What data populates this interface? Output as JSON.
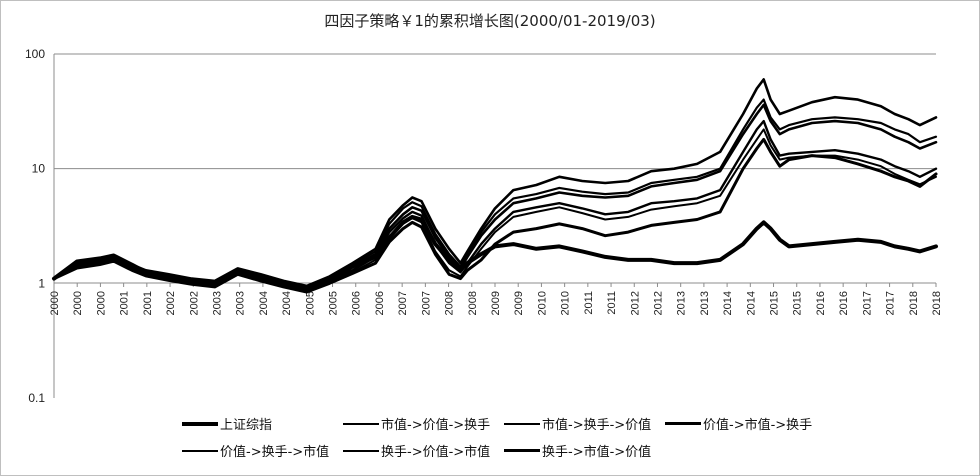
{
  "chart_data": {
    "type": "line",
    "title": "四因子策略￥1的累积增长图(2000/01-2019/03)",
    "y_scale": "log",
    "ylim": [
      0.1,
      100
    ],
    "y_ticks": [
      "0.1",
      "1",
      "10",
      "100"
    ],
    "x_tick_labels": [
      "2000",
      "2000",
      "2000",
      "2001",
      "2001",
      "2002",
      "2002",
      "2003",
      "2003",
      "2004",
      "2004",
      "2005",
      "2005",
      "2006",
      "2006",
      "2007",
      "2007",
      "2008",
      "2008",
      "2009",
      "2009",
      "2010",
      "2010",
      "2011",
      "2011",
      "2012",
      "2012",
      "2013",
      "2013",
      "2014",
      "2014",
      "2015",
      "2015",
      "2016",
      "2016",
      "2017",
      "2017",
      "2018",
      "2018"
    ],
    "x": [
      2000.0,
      2000.5,
      2001.0,
      2001.3,
      2001.7,
      2002.0,
      2002.5,
      2003.0,
      2003.5,
      2004.0,
      2004.5,
      2005.0,
      2005.5,
      2006.0,
      2006.5,
      2007.0,
      2007.3,
      2007.6,
      2007.8,
      2008.0,
      2008.3,
      2008.6,
      2008.85,
      2009.0,
      2009.3,
      2009.6,
      2010.0,
      2010.5,
      2011.0,
      2011.5,
      2012.0,
      2012.5,
      2013.0,
      2013.5,
      2014.0,
      2014.5,
      2015.0,
      2015.3,
      2015.45,
      2015.6,
      2015.8,
      2016.0,
      2016.5,
      2017.0,
      2017.5,
      2018.0,
      2018.3,
      2018.6,
      2018.85,
      2019.2
    ],
    "series": [
      {
        "name": "上证综指",
        "values": [
          1.1,
          1.55,
          1.65,
          1.75,
          1.45,
          1.25,
          1.15,
          1.05,
          1.0,
          1.3,
          1.1,
          1.0,
          0.9,
          1.05,
          1.4,
          1.7,
          2.5,
          3.4,
          3.8,
          3.6,
          2.2,
          1.6,
          1.3,
          1.5,
          1.8,
          2.1,
          2.2,
          2.0,
          2.1,
          1.9,
          1.7,
          1.6,
          1.6,
          1.5,
          1.5,
          1.6,
          2.2,
          3.0,
          3.4,
          3.0,
          2.4,
          2.1,
          2.2,
          2.3,
          2.4,
          2.3,
          2.1,
          2.0,
          1.9,
          2.1
        ]
      },
      {
        "name": "市值->价值->换手",
        "values": [
          1.1,
          1.5,
          1.6,
          1.7,
          1.45,
          1.3,
          1.2,
          1.1,
          1.05,
          1.35,
          1.2,
          1.05,
          0.95,
          1.15,
          1.5,
          2.0,
          3.6,
          4.8,
          5.6,
          5.2,
          3.0,
          2.0,
          1.5,
          1.9,
          3.0,
          4.5,
          6.5,
          7.2,
          8.5,
          7.8,
          7.5,
          7.8,
          9.5,
          10.0,
          11.0,
          14.0,
          30.0,
          50.0,
          60.0,
          40.0,
          30.0,
          32.0,
          38.0,
          42.0,
          40.0,
          35.0,
          30.0,
          27.0,
          24.0,
          28.0
        ]
      },
      {
        "name": "市值->换手->价值",
        "values": [
          1.1,
          1.48,
          1.58,
          1.68,
          1.42,
          1.28,
          1.18,
          1.08,
          1.02,
          1.32,
          1.18,
          1.02,
          0.92,
          1.12,
          1.45,
          1.9,
          3.3,
          4.5,
          5.1,
          4.7,
          2.7,
          1.8,
          1.4,
          1.8,
          2.8,
          4.0,
          5.5,
          6.0,
          6.8,
          6.3,
          6.0,
          6.2,
          7.5,
          8.0,
          8.5,
          10.0,
          22.0,
          34.0,
          40.0,
          28.0,
          22.0,
          24.0,
          27.0,
          28.0,
          27.0,
          25.0,
          22.0,
          20.0,
          17.0,
          19.0
        ]
      },
      {
        "name": "价值->市值->换手",
        "values": [
          1.1,
          1.45,
          1.55,
          1.65,
          1.4,
          1.25,
          1.15,
          1.06,
          1.0,
          1.3,
          1.15,
          1.0,
          0.9,
          1.1,
          1.4,
          1.8,
          3.0,
          4.0,
          4.6,
          4.3,
          2.5,
          1.7,
          1.35,
          1.7,
          2.6,
          3.6,
          5.0,
          5.5,
          6.2,
          5.8,
          5.6,
          5.8,
          7.0,
          7.5,
          8.0,
          9.5,
          20.0,
          30.0,
          36.0,
          26.0,
          20.0,
          22.0,
          25.0,
          26.0,
          25.0,
          22.0,
          19.0,
          17.0,
          15.0,
          17.0
        ]
      },
      {
        "name": "价值->换手->市值",
        "values": [
          1.1,
          1.4,
          1.5,
          1.6,
          1.35,
          1.2,
          1.1,
          1.02,
          0.97,
          1.25,
          1.1,
          0.97,
          0.88,
          1.05,
          1.3,
          1.7,
          2.8,
          3.7,
          4.2,
          3.9,
          2.2,
          1.5,
          1.25,
          1.5,
          2.2,
          3.0,
          4.2,
          4.6,
          5.0,
          4.5,
          4.0,
          4.2,
          5.0,
          5.2,
          5.5,
          6.5,
          14.0,
          22.0,
          26.0,
          18.0,
          13.0,
          13.5,
          14.0,
          14.5,
          13.5,
          12.0,
          10.5,
          9.5,
          8.5,
          10.0
        ]
      },
      {
        "name": "换手->价值->市值",
        "values": [
          1.1,
          1.38,
          1.48,
          1.58,
          1.33,
          1.18,
          1.08,
          1.0,
          0.95,
          1.22,
          1.08,
          0.95,
          0.86,
          1.02,
          1.25,
          1.6,
          2.5,
          3.3,
          3.7,
          3.4,
          1.9,
          1.3,
          1.15,
          1.4,
          2.0,
          2.8,
          3.8,
          4.2,
          4.6,
          4.1,
          3.6,
          3.8,
          4.4,
          4.7,
          5.0,
          5.8,
          12.0,
          18.0,
          22.0,
          16.0,
          12.0,
          12.5,
          13.0,
          13.0,
          12.0,
          10.5,
          9.0,
          8.0,
          7.3,
          8.5
        ]
      },
      {
        "name": "换手->市值->价值",
        "values": [
          1.1,
          1.36,
          1.46,
          1.56,
          1.3,
          1.16,
          1.06,
          0.98,
          0.93,
          1.2,
          1.05,
          0.93,
          0.84,
          1.0,
          1.22,
          1.5,
          2.3,
          3.0,
          3.4,
          3.1,
          1.8,
          1.2,
          1.1,
          1.3,
          1.6,
          2.2,
          2.8,
          3.0,
          3.3,
          3.0,
          2.6,
          2.8,
          3.2,
          3.4,
          3.6,
          4.2,
          10.0,
          15.0,
          18.0,
          14.0,
          10.5,
          12.0,
          13.0,
          12.5,
          11.0,
          9.5,
          8.5,
          7.8,
          7.0,
          9.0
        ]
      }
    ],
    "grid": "major horizontal at 10 and 100",
    "legend_placement": "bottom"
  }
}
